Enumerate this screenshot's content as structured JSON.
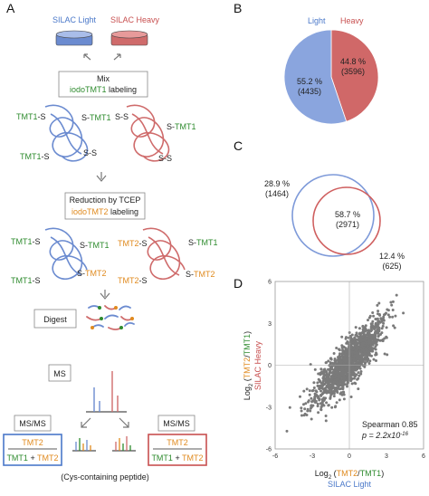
{
  "panels": {
    "a": {
      "letter": "A",
      "silac_light": "SILAC Light",
      "silac_heavy": "SILAC Heavy",
      "mix": "Mix",
      "mix_reagent": "iodoTMT1",
      "mix_suffix": " labeling",
      "reduction": "Reduction by TCEP",
      "reduction_reagent": "iodoTMT2",
      "reduction_suffix": " labeling",
      "digest": "Digest",
      "ms": "MS",
      "msms_left": "MS/MS",
      "msms_right": "MS/MS",
      "ratio_num": "TMT2",
      "ratio_den_a": "TMT1",
      "ratio_plus": " + ",
      "ratio_den_b": "TMT2",
      "caption": "(Cys-containing peptide)",
      "tmt1": "TMT1",
      "tmt2": "TMT2",
      "s_bond": "S-S",
      "tmt1_s": "TMT1-S",
      "s_tmt1": "S-TMT1",
      "tmt2_s": "TMT2-S",
      "s_tmt2": "S-TMT2"
    },
    "b": {
      "letter": "B",
      "light_label": "Light",
      "heavy_label": "Heavy",
      "light_pct": "55.2 %",
      "light_count": "(4435)",
      "heavy_pct": "44.8 %",
      "heavy_count": "(3596)"
    },
    "c": {
      "letter": "C",
      "left_pct": "28.9 %",
      "left_count": "(1464)",
      "mid_pct": "58.7 %",
      "mid_count": "(2971)",
      "right_pct": "12.4 %",
      "right_count": "(625)"
    },
    "d": {
      "letter": "D",
      "ylabel_log": "Log",
      "ylabel_sub": "2",
      "ylabel_open": " (",
      "ylabel_tmt2": "TMT2",
      "ylabel_slash": "/",
      "ylabel_tmt1": "TMT1",
      "ylabel_close": ")",
      "ylabel2": "SILAC Heavy",
      "xlabel_log": "Log",
      "xlabel_sub": "2",
      "xlabel_open": " (",
      "xlabel_tmt2": "TMT2",
      "xlabel_slash": "/",
      "xlabel_tmt1": "TMT1",
      "xlabel_close": ")",
      "xlabel2": "SILAC Light",
      "spearman": "Spearman 0.85",
      "p_value_prefix": "p = 2.2x10",
      "p_value_exp": "-16",
      "xticks": [
        "-6",
        "-3",
        "0",
        "3",
        "6"
      ],
      "yticks": [
        "6",
        "3",
        "0",
        "-3",
        "-6"
      ]
    }
  },
  "colors": {
    "light": "#8aa5de",
    "heavy": "#d06868",
    "tmt1_green": "#2e8b2e",
    "tmt2_orange": "#e08a1e",
    "blue_box": "#4a78c9",
    "red_box": "#c85050"
  },
  "chart_data": [
    {
      "type": "pie",
      "labels": [
        "Light",
        "Heavy"
      ],
      "values": [
        55.2,
        44.8
      ],
      "counts": [
        4435,
        3596
      ]
    },
    {
      "type": "scatter",
      "xlabel": "Log2 (TMT2/TMT1) SILAC Light",
      "ylabel": "Log2 (TMT2/TMT1) SILAC Heavy",
      "xlim": [
        -6,
        6
      ],
      "ylim": [
        -6,
        6
      ],
      "xticks": [
        -6,
        -3,
        0,
        3,
        6
      ],
      "yticks": [
        -6,
        -3,
        0,
        3,
        6
      ],
      "annotation": "Spearman 0.85, p = 2.2x10^-16",
      "trend": {
        "slope": 0.9,
        "intercept": 0.2,
        "spread": 0.75,
        "n_points": 1500
      }
    }
  ]
}
